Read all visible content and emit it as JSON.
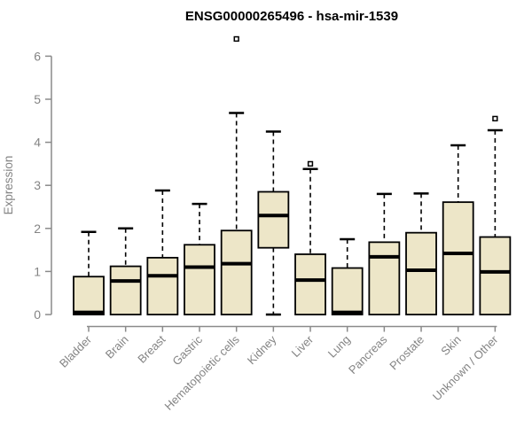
{
  "window": {
    "background": "#ffffff"
  },
  "chart_data": {
    "type": "boxplot",
    "title": "ENSG00000265496 - hsa-mir-1539",
    "ylabel": "Expression",
    "xlabel": "",
    "ylim": [
      0,
      6
    ],
    "y_ticks": [
      0,
      1,
      2,
      3,
      4,
      5,
      6
    ],
    "grid": "off",
    "legend": "none",
    "categories": [
      "Bladder",
      "Brain",
      "Breast",
      "Gastric",
      "Hematopoietic cells",
      "Kidney",
      "Liver",
      "Lung",
      "Pancreas",
      "Prostate",
      "Skin",
      "Unknown / Other"
    ],
    "series": [
      {
        "name": "Bladder",
        "whisker_low": 0,
        "q1": 0,
        "median": 0.05,
        "q3": 0.88,
        "whisker_high": 1.92,
        "outliers": []
      },
      {
        "name": "Brain",
        "whisker_low": 0,
        "q1": 0,
        "median": 0.78,
        "q3": 1.12,
        "whisker_high": 2.0,
        "outliers": []
      },
      {
        "name": "Breast",
        "whisker_low": 0,
        "q1": 0,
        "median": 0.9,
        "q3": 1.32,
        "whisker_high": 2.88,
        "outliers": []
      },
      {
        "name": "Gastric",
        "whisker_low": 0,
        "q1": 0,
        "median": 1.1,
        "q3": 1.62,
        "whisker_high": 2.57,
        "outliers": []
      },
      {
        "name": "Hematopoietic cells",
        "whisker_low": 0,
        "q1": 0,
        "median": 1.18,
        "q3": 1.95,
        "whisker_high": 4.68,
        "outliers": [
          6.4
        ]
      },
      {
        "name": "Kidney",
        "whisker_low": 0,
        "q1": 1.55,
        "median": 2.3,
        "q3": 2.85,
        "whisker_high": 4.25,
        "outliers": []
      },
      {
        "name": "Liver",
        "whisker_low": 0,
        "q1": 0,
        "median": 0.8,
        "q3": 1.4,
        "whisker_high": 3.38,
        "outliers": [
          3.5
        ]
      },
      {
        "name": "Lung",
        "whisker_low": 0,
        "q1": 0,
        "median": 0.05,
        "q3": 1.08,
        "whisker_high": 1.75,
        "outliers": []
      },
      {
        "name": "Pancreas",
        "whisker_low": 0,
        "q1": 0,
        "median": 1.34,
        "q3": 1.68,
        "whisker_high": 2.8,
        "outliers": []
      },
      {
        "name": "Prostate",
        "whisker_low": 0,
        "q1": 0,
        "median": 1.03,
        "q3": 1.9,
        "whisker_high": 2.81,
        "outliers": []
      },
      {
        "name": "Skin",
        "whisker_low": 0,
        "q1": 0,
        "median": 1.42,
        "q3": 2.61,
        "whisker_high": 3.93,
        "outliers": []
      },
      {
        "name": "Unknown / Other",
        "whisker_low": 0,
        "q1": 0,
        "median": 0.99,
        "q3": 1.8,
        "whisker_high": 4.28,
        "outliers": [
          4.55
        ]
      }
    ],
    "colors": {
      "box_fill": "#EDE6C8",
      "box_border": "#000000",
      "median": "#000000",
      "whisker": "#000000",
      "axis": "#8a8a8a",
      "tick_label": "#848484",
      "title": "#000000"
    }
  }
}
